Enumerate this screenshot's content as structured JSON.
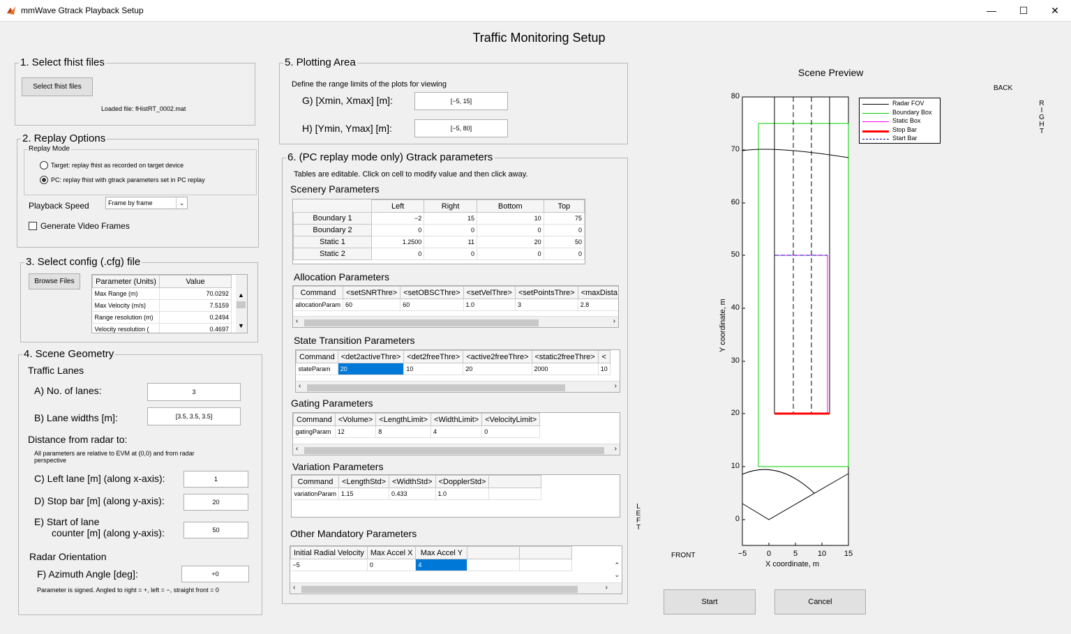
{
  "window": {
    "title": "mmWave Gtrack Playback Setup",
    "min": "—",
    "max": "☐",
    "close": "✕"
  },
  "main_title": "Traffic Monitoring Setup",
  "p1": {
    "title": "1. Select fhist files",
    "button": "Select fhist files",
    "loaded": "Loaded file: fHistRT_0002.mat"
  },
  "p2": {
    "title": "2. Replay Options",
    "mode_title": "Replay Mode",
    "opt_target": "Target: replay fhist as recorded on target device",
    "opt_pc": "PC: replay fhist with gtrack parameters set in PC replay",
    "speed_label": "Playback Speed",
    "speed_value": "Frame by frame",
    "video_label": "Generate Video Frames"
  },
  "p3": {
    "title": "3. Select config (.cfg) file",
    "button": "Browse Files",
    "headers": [
      "Parameter (Units)",
      "Value"
    ],
    "rows": [
      [
        "Max Range (m)",
        "70.0292"
      ],
      [
        "Max Velocity (m/s)",
        "7.5159"
      ],
      [
        "Range resolution (m)",
        "0.2494"
      ],
      [
        "Velocity resolution (",
        "0.4697"
      ]
    ]
  },
  "p4": {
    "title": "4. Scene Geometry",
    "lanes_title": "Traffic Lanes",
    "a_label": "A) No. of lanes:",
    "a_value": "3",
    "b_label": "B) Lane widths [m]:",
    "b_value": "[3.5, 3.5, 3.5]",
    "dist_title": "Distance from radar to:",
    "dist_note": "All parameters are relative to EVM at (0,0) and from radar perspective",
    "c_label": "C) Left lane [m] (along x-axis):",
    "c_value": "1",
    "d_label": "D) Stop bar [m] (along y-axis):",
    "d_value": "20",
    "e_label1": "E) Start of lane",
    "e_label2": "counter [m] (along y-axis):",
    "e_value": "50",
    "orient_title": "Radar Orientation",
    "f_label": "F) Azimuth Angle [deg]:",
    "f_value": "+0",
    "f_note": "Parameter is signed. Angled to right = +, left = −, straight front = 0"
  },
  "p5": {
    "title": "5. Plotting Area",
    "desc": "Define the range limits of the plots for viewing",
    "g_label": "G) [Xmin, Xmax] [m]:",
    "g_value": "[−5, 15]",
    "h_label": "H) [Ymin, Ymax] [m]:",
    "h_value": "[−5, 80]"
  },
  "p6": {
    "title": "6. (PC replay mode only) Gtrack parameters",
    "desc": "Tables are editable. Click on cell to modify value and then click away.",
    "scenery": {
      "title": "Scenery Parameters",
      "headers": [
        "Left",
        "Right",
        "Bottom",
        "Top"
      ],
      "rows": [
        {
          "name": "Boundary 1",
          "vals": [
            "−2",
            "15",
            "10",
            "75"
          ]
        },
        {
          "name": "Boundary 2",
          "vals": [
            "0",
            "0",
            "0",
            "0"
          ]
        },
        {
          "name": "Static 1",
          "vals": [
            "1.2500",
            "11",
            "20",
            "50"
          ]
        },
        {
          "name": "Static 2",
          "vals": [
            "0",
            "0",
            "0",
            "0"
          ]
        }
      ]
    },
    "allocation": {
      "title": "Allocation Parameters",
      "headers": [
        "Command",
        "<setSNRThre>",
        "<setOBSCThre>",
        "<setVelThre>",
        "<setPointsThre>",
        "<maxDista"
      ],
      "row": [
        "allocationParam",
        "60",
        "60",
        "1.0",
        "3",
        "2.8"
      ]
    },
    "state": {
      "title": "State Transition Parameters",
      "headers": [
        "Command",
        "<det2activeThre>",
        "<det2freeThre>",
        "<active2freeThre>",
        "<static2freeThre>",
        "<"
      ],
      "row": [
        "stateParam",
        "20",
        "10",
        "20",
        "2000",
        "10"
      ]
    },
    "gating": {
      "title": "Gating Parameters",
      "headers": [
        "Command",
        "<Volume>",
        "<LengthLimit>",
        "<WidthLimit>",
        "<VelocityLimit>"
      ],
      "row": [
        "gatingParam",
        "12",
        "8",
        "4",
        "0"
      ]
    },
    "variation": {
      "title": "Variation Parameters",
      "headers": [
        "Command",
        "<LengthStd>",
        "<WidthStd>",
        "<DopplerStd>"
      ],
      "row": [
        "variationParam",
        "1.15",
        "0.433",
        "1.0"
      ]
    },
    "other": {
      "title": "Other Mandatory Parameters",
      "headers": [
        "Initial Radial Velocity",
        "Max Accel X",
        "Max Accel Y"
      ],
      "row": [
        "−5",
        "0",
        "4"
      ]
    }
  },
  "preview": {
    "title": "Scene Preview",
    "back": "BACK",
    "front": "FRONT",
    "left_letters": [
      "L",
      "E",
      "F",
      "T"
    ],
    "right_letters": [
      "R",
      "I",
      "G",
      "H",
      "T"
    ],
    "xlabel": "X coordinate, m",
    "ylabel": "Y coordinate, m",
    "xticks": [
      "−5",
      "0",
      "5",
      "10",
      "15"
    ],
    "yticks": [
      "0",
      "10",
      "20",
      "30",
      "40",
      "50",
      "60",
      "70",
      "80"
    ],
    "legend": [
      {
        "label": "Radar FOV",
        "color": "#000000"
      },
      {
        "label": "Boundary Box",
        "color": "#00cc00"
      },
      {
        "label": "Static Box",
        "color": "#ff00ff"
      },
      {
        "label": "Stop Bar",
        "color": "#ff0000"
      },
      {
        "label": "Start Bar",
        "color": "#0000aa"
      }
    ]
  },
  "buttons": {
    "start": "Start",
    "cancel": "Cancel"
  }
}
